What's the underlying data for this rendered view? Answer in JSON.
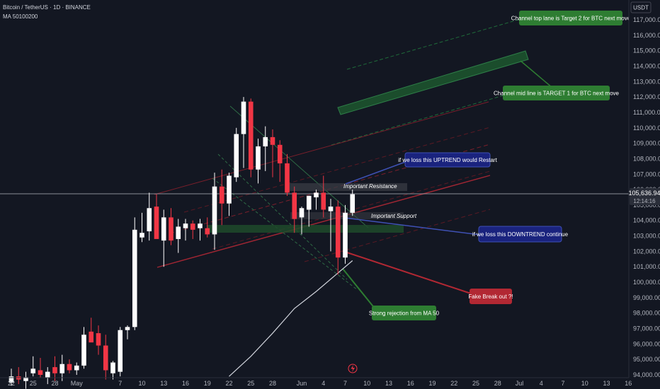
{
  "header": {
    "symbol": "Bitcoin / TetherUS · 1D · BINANCE",
    "indicator": "MA 50100200"
  },
  "price_axis": {
    "currency": "USDT",
    "current_price": "105,636.94",
    "countdown": "12:14:16"
  },
  "colors": {
    "background": "#131722",
    "up": "#ffffff",
    "down": "#f23645",
    "green_box": "#2e7d32",
    "red_box": "#b22833",
    "blue_box": "#1a237e",
    "blue_border": "#3f51b5",
    "ma50": "#d1d4dc"
  },
  "chart_data": {
    "type": "candlestick",
    "title": "Bitcoin / TetherUS · 1D · BINANCE",
    "ylim": [
      93700,
      118000
    ],
    "y_ticks": [
      94000,
      95000,
      96000,
      97000,
      98000,
      99000,
      100000,
      101000,
      102000,
      103000,
      104000,
      105000,
      106000,
      107000,
      108000,
      109000,
      110000,
      111000,
      112000,
      113000,
      114000,
      115000,
      116000,
      117000
    ],
    "y_tick_labels": [
      "94,000.00",
      "95,000.00",
      "96,000.00",
      "97,000.00",
      "98,000.00",
      "99,000.00",
      "100,000.00",
      "101,000.00",
      "102,000.00",
      "103,000.00",
      "104,000.00",
      "105,000.00",
      "106,000.00",
      "107,000.00",
      "108,000.00",
      "109,000.00",
      "110,000.00",
      "111,000.00",
      "112,000.00",
      "113,000.00",
      "114,000.00",
      "115,000.00",
      "116,000.00",
      "117,000.00"
    ],
    "x_ticks": [
      {
        "day": 0,
        "label": "22"
      },
      {
        "day": 3,
        "label": "25"
      },
      {
        "day": 6,
        "label": "28"
      },
      {
        "day": 9,
        "label": "May"
      },
      {
        "day": 15,
        "label": "7"
      },
      {
        "day": 18,
        "label": "10"
      },
      {
        "day": 21,
        "label": "13"
      },
      {
        "day": 24,
        "label": "16"
      },
      {
        "day": 27,
        "label": "19"
      },
      {
        "day": 30,
        "label": "22"
      },
      {
        "day": 33,
        "label": "25"
      },
      {
        "day": 36,
        "label": "28"
      },
      {
        "day": 40,
        "label": "Jun"
      },
      {
        "day": 43,
        "label": "4"
      },
      {
        "day": 46,
        "label": "7"
      },
      {
        "day": 49,
        "label": "10"
      },
      {
        "day": 52,
        "label": "13"
      },
      {
        "day": 55,
        "label": "16"
      },
      {
        "day": 58,
        "label": "19"
      },
      {
        "day": 61,
        "label": "22"
      },
      {
        "day": 64,
        "label": "25"
      },
      {
        "day": 67,
        "label": "28"
      },
      {
        "day": 70,
        "label": "Jul"
      },
      {
        "day": 73,
        "label": "4"
      },
      {
        "day": 76,
        "label": "7"
      },
      {
        "day": 79,
        "label": "10"
      },
      {
        "day": 82,
        "label": "13"
      },
      {
        "day": 85,
        "label": "16"
      }
    ],
    "candles": [
      {
        "o": 93500,
        "h": 94400,
        "l": 93300,
        "c": 93900
      },
      {
        "o": 93900,
        "h": 94500,
        "l": 93400,
        "c": 93700
      },
      {
        "o": 93600,
        "h": 94200,
        "l": 93100,
        "c": 93850
      },
      {
        "o": 94100,
        "h": 95200,
        "l": 93900,
        "c": 94400
      },
      {
        "o": 94300,
        "h": 95100,
        "l": 93800,
        "c": 94000
      },
      {
        "o": 93800,
        "h": 94500,
        "l": 93400,
        "c": 94200
      },
      {
        "o": 94500,
        "h": 95200,
        "l": 93600,
        "c": 94100
      },
      {
        "o": 94100,
        "h": 95300,
        "l": 93600,
        "c": 94700
      },
      {
        "o": 94700,
        "h": 95000,
        "l": 94100,
        "c": 94300
      },
      {
        "o": 94300,
        "h": 94800,
        "l": 94000,
        "c": 94600
      },
      {
        "o": 94600,
        "h": 97100,
        "l": 94400,
        "c": 96600
      },
      {
        "o": 96800,
        "h": 97700,
        "l": 96200,
        "c": 96100
      },
      {
        "o": 96700,
        "h": 97200,
        "l": 95300,
        "c": 95900
      },
      {
        "o": 95900,
        "h": 96600,
        "l": 93700,
        "c": 94300
      },
      {
        "o": 94100,
        "h": 94900,
        "l": 93700,
        "c": 94800
      },
      {
        "o": 94200,
        "h": 97100,
        "l": 93900,
        "c": 96900
      },
      {
        "o": 96900,
        "h": 97200,
        "l": 96300,
        "c": 97100
      },
      {
        "o": 97100,
        "h": 104200,
        "l": 96900,
        "c": 103400
      },
      {
        "o": 102900,
        "h": 104500,
        "l": 102600,
        "c": 103200
      },
      {
        "o": 103300,
        "h": 105800,
        "l": 102700,
        "c": 104800
      },
      {
        "o": 104900,
        "h": 105700,
        "l": 102900,
        "c": 102800
      },
      {
        "o": 102700,
        "h": 104700,
        "l": 101000,
        "c": 104200
      },
      {
        "o": 104200,
        "h": 104800,
        "l": 102400,
        "c": 102700
      },
      {
        "o": 102800,
        "h": 104100,
        "l": 101900,
        "c": 103600
      },
      {
        "o": 103500,
        "h": 104100,
        "l": 102700,
        "c": 103800
      },
      {
        "o": 103800,
        "h": 104000,
        "l": 102800,
        "c": 103400
      },
      {
        "o": 103500,
        "h": 104100,
        "l": 102700,
        "c": 103800
      },
      {
        "o": 103500,
        "h": 104200,
        "l": 102900,
        "c": 103100
      },
      {
        "o": 103100,
        "h": 107100,
        "l": 102100,
        "c": 106200
      },
      {
        "o": 106200,
        "h": 107300,
        "l": 103700,
        "c": 105100
      },
      {
        "o": 105100,
        "h": 107100,
        "l": 104300,
        "c": 106900
      },
      {
        "o": 106800,
        "h": 110000,
        "l": 106500,
        "c": 109600
      },
      {
        "o": 109600,
        "h": 112000,
        "l": 107400,
        "c": 111700
      },
      {
        "o": 111700,
        "h": 111900,
        "l": 106800,
        "c": 107300
      },
      {
        "o": 107300,
        "h": 109300,
        "l": 106400,
        "c": 108800
      },
      {
        "o": 108800,
        "h": 110100,
        "l": 107200,
        "c": 109400
      },
      {
        "o": 109400,
        "h": 109900,
        "l": 106800,
        "c": 108900
      },
      {
        "o": 108900,
        "h": 109200,
        "l": 106500,
        "c": 107700
      },
      {
        "o": 107700,
        "h": 108300,
        "l": 105600,
        "c": 105800
      },
      {
        "o": 105800,
        "h": 106200,
        "l": 103200,
        "c": 104100
      },
      {
        "o": 104200,
        "h": 104900,
        "l": 103100,
        "c": 104800
      },
      {
        "o": 104700,
        "h": 105600,
        "l": 103600,
        "c": 105600
      },
      {
        "o": 105500,
        "h": 106000,
        "l": 104700,
        "c": 105800
      },
      {
        "o": 105800,
        "h": 106900,
        "l": 104200,
        "c": 104700
      },
      {
        "o": 104600,
        "h": 105400,
        "l": 102000,
        "c": 104900
      },
      {
        "o": 104900,
        "h": 105300,
        "l": 100500,
        "c": 101600
      },
      {
        "o": 101600,
        "h": 105000,
        "l": 101200,
        "c": 104500
      },
      {
        "o": 104500,
        "h": 106000,
        "l": 104300,
        "c": 105700
      }
    ],
    "ma50": [
      {
        "day": 30,
        "v": 93900
      },
      {
        "day": 33,
        "v": 95200
      },
      {
        "day": 36,
        "v": 96700
      },
      {
        "day": 39,
        "v": 98300
      },
      {
        "day": 42,
        "v": 99400
      },
      {
        "day": 45,
        "v": 100600
      },
      {
        "day": 47,
        "v": 101400
      }
    ],
    "annotations": [
      {
        "text": "Channel top lane is Target 2 for BTC next move",
        "style": "green"
      },
      {
        "text": "Channel mid line is TARGET 1 for BTC next move",
        "style": "green"
      },
      {
        "text": "if we loss this UPTREND would Restart",
        "style": "blue"
      },
      {
        "text": "Important Resistance",
        "style": "plain"
      },
      {
        "text": "Important Support",
        "style": "plain"
      },
      {
        "text": "if we loss this DOWNTREND continue",
        "style": "blue"
      },
      {
        "text": "Fake Break out ?!",
        "style": "red"
      },
      {
        "text": "Strong rejection from MA 50",
        "style": "green"
      }
    ]
  }
}
